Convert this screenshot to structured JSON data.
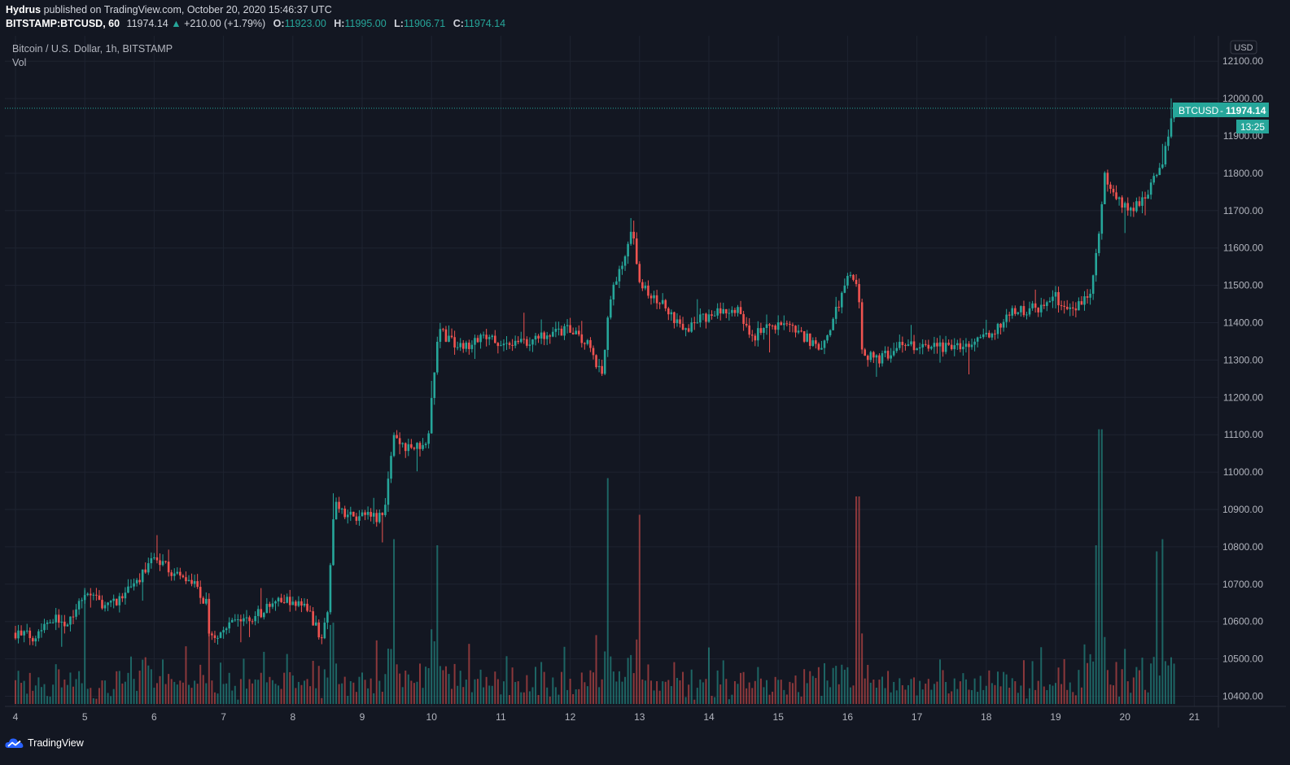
{
  "header": {
    "author": "Hydrus",
    "published_text": "published on TradingView.com, October 20, 2020 15:46:37 UTC",
    "symbol_interval": "BITSTAMP:BTCUSD, 60",
    "last_price": "11974.14",
    "change_text": "+210.00 (+1.79%)",
    "open_label": "O:",
    "open": "11923.00",
    "high_label": "H:",
    "high": "11995.00",
    "low_label": "L:",
    "low": "11906.71",
    "close_label": "C:",
    "close": "11974.14"
  },
  "legend": {
    "series_title": "Bitcoin / U.S. Dollar, 1h, BITSTAMP",
    "volume_label": "Vol"
  },
  "price_axis": {
    "currency": "USD",
    "tag_symbol": "BTCUSD",
    "tag_price": "11974.14",
    "countdown": "13:25"
  },
  "footer": {
    "brand": "TradingView"
  },
  "colors": {
    "background": "#131722",
    "grid": "#1e2330",
    "up": "#26a69a",
    "down": "#ef5350",
    "text": "#b2b5be"
  },
  "chart_data": {
    "type": "candlestick",
    "title": "Bitcoin / U.S. Dollar, 1h, BITSTAMP",
    "currency": "USD",
    "ylim": [
      10370,
      12150
    ],
    "y_ticks": [
      10400,
      10500,
      10600,
      10700,
      10800,
      10900,
      11000,
      11100,
      11200,
      11300,
      11400,
      11500,
      11600,
      11700,
      11800,
      11900,
      12000,
      12100
    ],
    "x_ticks": [
      "4",
      "5",
      "6",
      "7",
      "8",
      "9",
      "10",
      "11",
      "12",
      "13",
      "14",
      "15",
      "16",
      "17",
      "18",
      "19",
      "20",
      "21"
    ],
    "last_price": 11974.14,
    "close_path": [
      [
        4.0,
        10570
      ],
      [
        4.25,
        10560
      ],
      [
        4.5,
        10610
      ],
      [
        4.75,
        10600
      ],
      [
        5.0,
        10680
      ],
      [
        5.25,
        10650
      ],
      [
        5.5,
        10660
      ],
      [
        5.75,
        10700
      ],
      [
        6.0,
        10780
      ],
      [
        6.25,
        10730
      ],
      [
        6.5,
        10720
      ],
      [
        6.75,
        10650
      ],
      [
        6.8,
        10550
      ],
      [
        7.0,
        10580
      ],
      [
        7.25,
        10600
      ],
      [
        7.5,
        10620
      ],
      [
        7.75,
        10650
      ],
      [
        8.0,
        10660
      ],
      [
        8.25,
        10620
      ],
      [
        8.4,
        10560
      ],
      [
        8.5,
        10620
      ],
      [
        8.6,
        10920
      ],
      [
        8.8,
        10880
      ],
      [
        9.1,
        10880
      ],
      [
        9.3,
        10880
      ],
      [
        9.45,
        11090
      ],
      [
        9.7,
        11060
      ],
      [
        9.95,
        11090
      ],
      [
        10.1,
        11380
      ],
      [
        10.4,
        11330
      ],
      [
        10.8,
        11360
      ],
      [
        11.2,
        11340
      ],
      [
        11.6,
        11370
      ],
      [
        12.0,
        11380
      ],
      [
        12.3,
        11340
      ],
      [
        12.45,
        11250
      ],
      [
        12.6,
        11500
      ],
      [
        12.8,
        11570
      ],
      [
        12.9,
        11650
      ],
      [
        13.0,
        11500
      ],
      [
        13.4,
        11440
      ],
      [
        13.6,
        11380
      ],
      [
        14.0,
        11420
      ],
      [
        14.4,
        11440
      ],
      [
        14.6,
        11360
      ],
      [
        15.0,
        11400
      ],
      [
        15.4,
        11360
      ],
      [
        15.6,
        11320
      ],
      [
        15.8,
        11410
      ],
      [
        16.0,
        11520
      ],
      [
        16.15,
        11500
      ],
      [
        16.2,
        11320
      ],
      [
        16.4,
        11300
      ],
      [
        16.8,
        11340
      ],
      [
        17.2,
        11340
      ],
      [
        17.6,
        11330
      ],
      [
        18.0,
        11360
      ],
      [
        18.2,
        11390
      ],
      [
        18.4,
        11430
      ],
      [
        18.8,
        11440
      ],
      [
        19.0,
        11470
      ],
      [
        19.2,
        11430
      ],
      [
        19.5,
        11480
      ],
      [
        19.6,
        11600
      ],
      [
        19.7,
        11790
      ],
      [
        19.9,
        11730
      ],
      [
        20.1,
        11700
      ],
      [
        20.3,
        11740
      ],
      [
        20.45,
        11790
      ],
      [
        20.55,
        11830
      ],
      [
        20.65,
        11930
      ],
      [
        20.72,
        11974
      ]
    ],
    "volume_spikes": [
      [
        5.0,
        190
      ],
      [
        9.45,
        270
      ],
      [
        10.1,
        260
      ],
      [
        12.55,
        370
      ],
      [
        13.0,
        310
      ],
      [
        16.15,
        340
      ],
      [
        19.6,
        260
      ],
      [
        19.65,
        450
      ],
      [
        20.45,
        250
      ],
      [
        20.55,
        270
      ]
    ]
  }
}
